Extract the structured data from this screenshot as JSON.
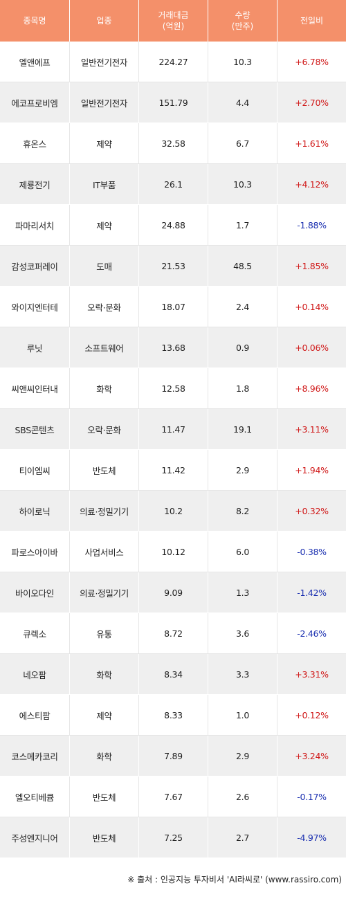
{
  "header": {
    "col1": [
      "종목명"
    ],
    "col2": [
      "업종"
    ],
    "col3": [
      "거래대금",
      "(억원)"
    ],
    "col4": [
      "수량",
      "(만주)"
    ],
    "col5": [
      "전일비"
    ]
  },
  "rows": [
    {
      "name": "엘앤에프",
      "sector": "일반전기전자",
      "amount": "224.27",
      "qty": "10.3",
      "change": "+6.78%",
      "dir": "pos"
    },
    {
      "name": "에코프로비엠",
      "sector": "일반전기전자",
      "amount": "151.79",
      "qty": "4.4",
      "change": "+2.70%",
      "dir": "pos"
    },
    {
      "name": "휴온스",
      "sector": "제약",
      "amount": "32.58",
      "qty": "6.7",
      "change": "+1.61%",
      "dir": "pos"
    },
    {
      "name": "제룡전기",
      "sector": "IT부품",
      "amount": "26.1",
      "qty": "10.3",
      "change": "+4.12%",
      "dir": "pos"
    },
    {
      "name": "파마리서치",
      "sector": "제약",
      "amount": "24.88",
      "qty": "1.7",
      "change": "-1.88%",
      "dir": "neg"
    },
    {
      "name": "감성코퍼레이",
      "sector": "도매",
      "amount": "21.53",
      "qty": "48.5",
      "change": "+1.85%",
      "dir": "pos"
    },
    {
      "name": "와이지엔터테",
      "sector": "오락·문화",
      "amount": "18.07",
      "qty": "2.4",
      "change": "+0.14%",
      "dir": "pos"
    },
    {
      "name": "루닛",
      "sector": "소프트웨어",
      "amount": "13.68",
      "qty": "0.9",
      "change": "+0.06%",
      "dir": "pos"
    },
    {
      "name": "씨앤씨인터내",
      "sector": "화학",
      "amount": "12.58",
      "qty": "1.8",
      "change": "+8.96%",
      "dir": "pos"
    },
    {
      "name": "SBS콘텐츠",
      "sector": "오락·문화",
      "amount": "11.47",
      "qty": "19.1",
      "change": "+3.11%",
      "dir": "pos"
    },
    {
      "name": "티이엠씨",
      "sector": "반도체",
      "amount": "11.42",
      "qty": "2.9",
      "change": "+1.94%",
      "dir": "pos"
    },
    {
      "name": "하이로닉",
      "sector": "의료·정밀기기",
      "amount": "10.2",
      "qty": "8.2",
      "change": "+0.32%",
      "dir": "pos"
    },
    {
      "name": "파로스아이바",
      "sector": "사업서비스",
      "amount": "10.12",
      "qty": "6.0",
      "change": "-0.38%",
      "dir": "neg"
    },
    {
      "name": "바이오다인",
      "sector": "의료·정밀기기",
      "amount": "9.09",
      "qty": "1.3",
      "change": "-1.42%",
      "dir": "neg"
    },
    {
      "name": "큐렉소",
      "sector": "유통",
      "amount": "8.72",
      "qty": "3.6",
      "change": "-2.46%",
      "dir": "neg"
    },
    {
      "name": "네오팜",
      "sector": "화학",
      "amount": "8.34",
      "qty": "3.3",
      "change": "+3.31%",
      "dir": "pos"
    },
    {
      "name": "에스티팜",
      "sector": "제약",
      "amount": "8.33",
      "qty": "1.0",
      "change": "+0.12%",
      "dir": "pos"
    },
    {
      "name": "코스메카코리",
      "sector": "화학",
      "amount": "7.89",
      "qty": "2.9",
      "change": "+3.24%",
      "dir": "pos"
    },
    {
      "name": "엘오티베큠",
      "sector": "반도체",
      "amount": "7.67",
      "qty": "2.6",
      "change": "-0.17%",
      "dir": "neg"
    },
    {
      "name": "주성엔지니어",
      "sector": "반도체",
      "amount": "7.25",
      "qty": "2.7",
      "change": "-4.97%",
      "dir": "neg"
    }
  ],
  "footer": "※ 출처 : 인공지능 투자비서 'AI라씨로' (www.rassiro.com)",
  "colors": {
    "header_bg": "#f4906a",
    "up": "#d01818",
    "down": "#1a2fb0",
    "stripe": "#efefef"
  }
}
